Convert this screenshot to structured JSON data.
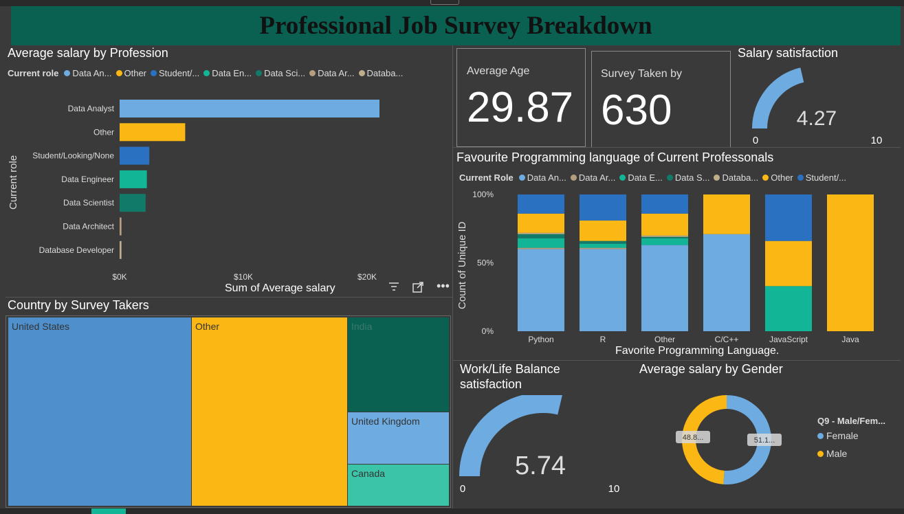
{
  "title": "Professional Job Survey Breakdown",
  "colors": {
    "light_blue": "#6dabe0",
    "yellow": "#fbb815",
    "blue": "#2a72c1",
    "teal": "#12b596",
    "dark_teal": "#127a68",
    "tan": "#b59e7f",
    "beige": "#bfae8a",
    "header_green": "#0a6152"
  },
  "salary_by_profession": {
    "title": "Average salary by Profession",
    "legend_title": "Current role",
    "legend_items": [
      "Data An...",
      "Other",
      "Student/...",
      "Data En...",
      "Data Sci...",
      "Data Ar...",
      "Databa..."
    ],
    "legend_colors": [
      "#6dabe0",
      "#fbb815",
      "#2a72c1",
      "#12b596",
      "#127a68",
      "#b59e7f",
      "#bfae8a"
    ],
    "y_axis_title": "Current role",
    "x_axis_title": "Sum of Average salary",
    "x_ticks": [
      "$0K",
      "$10K",
      "$20K"
    ]
  },
  "average_age": {
    "label": "Average Age",
    "value": "29.87"
  },
  "survey_taken": {
    "label": "Survey Taken by",
    "value": "630"
  },
  "salary_satisfaction": {
    "title": "Salary satisfaction",
    "value": "4.27",
    "min": "0",
    "max": "10",
    "value_num": 4.27,
    "max_num": 10
  },
  "fav_language": {
    "title": "Favourite Programming language of Current Professonals",
    "legend_title": "Current Role",
    "legend_items": [
      "Data An...",
      "Data Ar...",
      "Data E...",
      "Data S...",
      "Databa...",
      "Other",
      "Student/..."
    ],
    "legend_colors": [
      "#6dabe0",
      "#b59e7f",
      "#12b596",
      "#127a68",
      "#bfae8a",
      "#fbb815",
      "#2a72c1"
    ],
    "y_axis_title": "Count of Unique ID",
    "x_axis_title": "Favorite Programming Language.",
    "y_ticks": [
      "100%",
      "50%",
      "0%"
    ]
  },
  "country": {
    "title": "Country by Survey Takers",
    "cells": [
      "United States",
      "Other",
      "India",
      "United Kingdom",
      "Canada"
    ]
  },
  "work_life": {
    "title_line1": "Work/Life Balance",
    "title_line2": "satisfaction",
    "value": "5.74",
    "min": "0",
    "max": "10",
    "value_num": 5.74,
    "max_num": 10
  },
  "gender": {
    "title": "Average salary by Gender",
    "legend_title": "Q9 - Male/Fem...",
    "labels": [
      "Female",
      "Male"
    ],
    "data_labels": [
      "51.1...",
      "48.8..."
    ]
  },
  "chart_data": [
    {
      "type": "bar",
      "title": "Average salary by Profession",
      "ylabel": "Current role",
      "xlabel": "Sum of Average salary",
      "categories": [
        "Data Analyst",
        "Other",
        "Student/Looking/None",
        "Data Engineer",
        "Data Scientist",
        "Data Architect",
        "Database Developer"
      ],
      "values": [
        21000,
        5300,
        2400,
        2200,
        2100,
        150,
        150
      ],
      "colors": [
        "#6dabe0",
        "#fbb815",
        "#2a72c1",
        "#12b596",
        "#127a68",
        "#b59e7f",
        "#bfae8a"
      ],
      "xlim": [
        0,
        22000
      ],
      "orientation": "horizontal"
    },
    {
      "type": "bar",
      "stacked": "percent",
      "title": "Favourite Programming language of Current Professonals",
      "xlabel": "Favorite Programming Language.",
      "ylabel": "Count of Unique ID",
      "categories": [
        "Python",
        "R",
        "Other",
        "C/C++",
        "JavaScript",
        "Java"
      ],
      "series": [
        {
          "name": "Data An...",
          "color": "#6dabe0",
          "values": [
            60,
            60,
            63,
            71,
            0,
            0
          ]
        },
        {
          "name": "Data Ar...",
          "color": "#b59e7f",
          "values": [
            1,
            1,
            0,
            0,
            0,
            0
          ]
        },
        {
          "name": "Data E...",
          "color": "#12b596",
          "values": [
            7,
            3,
            5,
            0,
            33,
            0
          ]
        },
        {
          "name": "Data S...",
          "color": "#127a68",
          "values": [
            3,
            2,
            1,
            0,
            0,
            0
          ]
        },
        {
          "name": "Databa...",
          "color": "#bfae8a",
          "values": [
            1,
            0,
            1,
            0,
            0,
            0
          ]
        },
        {
          "name": "Other",
          "color": "#fbb815",
          "values": [
            14,
            15,
            16,
            29,
            33,
            100
          ]
        },
        {
          "name": "Student/...",
          "color": "#2a72c1",
          "values": [
            14,
            19,
            14,
            0,
            34,
            0
          ]
        }
      ],
      "ylim": [
        0,
        100
      ]
    },
    {
      "type": "pie",
      "donut": true,
      "title": "Average salary by Gender",
      "categories": [
        "Female",
        "Male"
      ],
      "values": [
        51.1,
        48.8
      ],
      "colors": [
        "#6dabe0",
        "#fbb815"
      ]
    }
  ]
}
